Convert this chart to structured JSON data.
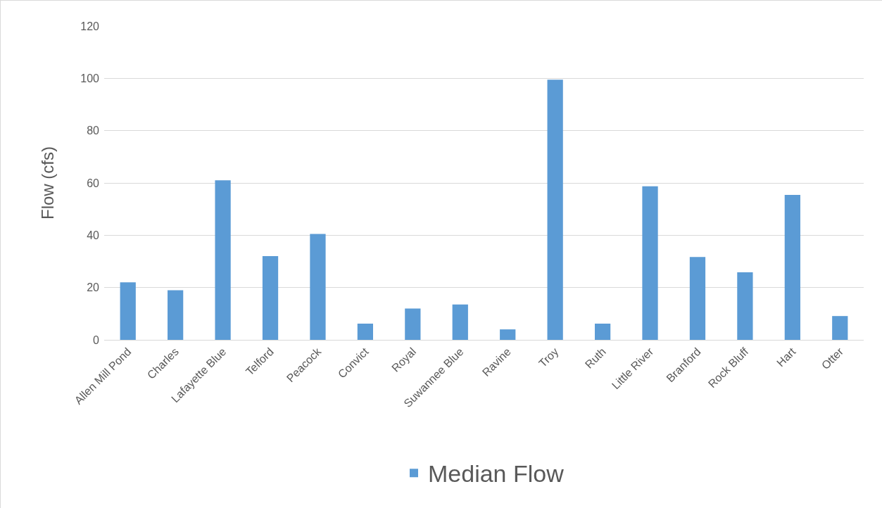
{
  "chart_data": {
    "type": "bar",
    "ylabel": "Flow (cfs)",
    "categories": [
      "Allen Mill Pond",
      "Charles",
      "Lafayette Blue",
      "Telford",
      "Peacock",
      "Convict",
      "Royal",
      "Suwannee Blue",
      "Ravine",
      "Troy",
      "Ruth",
      "Little River",
      "Branford",
      "Rock Bluff",
      "Hart",
      "Otter"
    ],
    "series": [
      {
        "name": "Median Flow",
        "color": "#5b9bd5",
        "values": [
          22,
          19,
          61,
          32,
          40.5,
          6.2,
          12,
          13.5,
          4,
          99.5,
          6.2,
          58.7,
          31.7,
          25.8,
          55.4,
          9.1
        ]
      }
    ],
    "ylim": [
      0,
      120
    ],
    "yticks": [
      0,
      20,
      40,
      60,
      80,
      100,
      120
    ],
    "grid": "y",
    "legend": "bottom"
  }
}
